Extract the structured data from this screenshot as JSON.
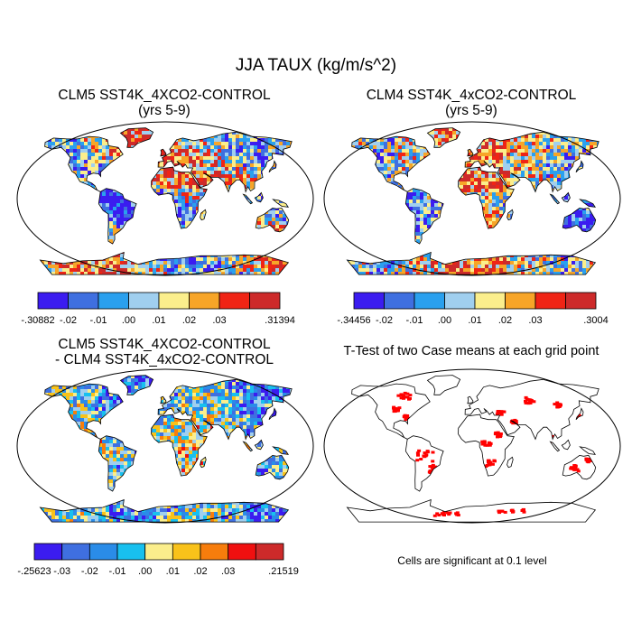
{
  "title": "JJA TAUX (kg/m/s^2)",
  "panels": [
    {
      "id": "clm5",
      "title_line1": "CLM5 SST4K_4XCO2-CONTROL",
      "title_line2": "(yrs 5-9)",
      "colorbar": {
        "colors": [
          "#3b1cf0",
          "#3f6fe0",
          "#2aa0ee",
          "#a0cfef",
          "#fbee8c",
          "#f7a528",
          "#f02415",
          "#cd2a2a"
        ],
        "labels": [
          "-.30882",
          "-.02",
          "-.01",
          ".00",
          ".01",
          ".02",
          ".03",
          ".31394"
        ]
      }
    },
    {
      "id": "clm4",
      "title_line1": "CLM4 SST4K_4xCO2-CONTROL",
      "title_line2": "(yrs 5-9)",
      "colorbar": {
        "colors": [
          "#3b1cf0",
          "#3f6fe0",
          "#2aa0ee",
          "#a0cfef",
          "#fbee8c",
          "#f7a528",
          "#f02415",
          "#cd2a2a"
        ],
        "labels": [
          "-.34456",
          "-.02",
          "-.01",
          ".00",
          ".01",
          ".02",
          ".03",
          ".3004"
        ]
      }
    },
    {
      "id": "diff",
      "title_line1": "CLM5 SST4K_4XCO2-CONTROL",
      "title_line2": "- CLM4 SST4K_4xCO2-CONTROL",
      "colorbar": {
        "colors": [
          "#3b1cf0",
          "#3f6fe0",
          "#2a8ce8",
          "#18c0ef",
          "#fbee8c",
          "#f9c21a",
          "#f77d0c",
          "#f01010",
          "#cd2a2a"
        ],
        "labels": [
          "-.25623",
          "-.03",
          "-.02",
          "-.01",
          ".00",
          ".01",
          ".02",
          ".03",
          ".21519"
        ]
      }
    },
    {
      "id": "ttest",
      "title_line1": "T-Test of two Case means at each grid point",
      "footnote": "Cells are significant at 0.1 level"
    }
  ]
}
